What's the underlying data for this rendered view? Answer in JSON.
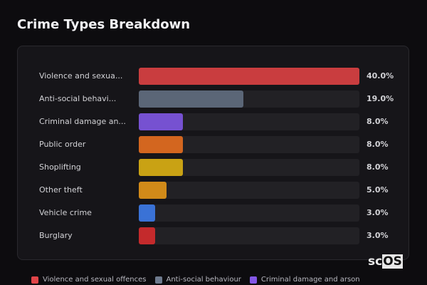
{
  "title": "Crime Types Breakdown",
  "logo": {
    "prefix": "sc",
    "suffix": "OS"
  },
  "chart_data": {
    "type": "bar",
    "orientation": "horizontal",
    "title": "Crime Types Breakdown",
    "categories": [
      "Violence and sexua...",
      "Anti-social behavi...",
      "Criminal damage an...",
      "Public order",
      "Shoplifting",
      "Other theft",
      "Vehicle crime",
      "Burglary"
    ],
    "values": [
      40.0,
      19.0,
      8.0,
      8.0,
      8.0,
      5.0,
      3.0,
      3.0
    ],
    "value_labels": [
      "40.0%",
      "19.0%",
      "8.0%",
      "8.0%",
      "8.0%",
      "5.0%",
      "3.0%",
      "3.0%"
    ],
    "colors": [
      "#c93d3f",
      "#5b6677",
      "#7651d1",
      "#d3661f",
      "#c9a214",
      "#d18a19",
      "#3a72d6",
      "#c42a2c"
    ],
    "xlim": [
      0,
      40
    ],
    "grid": false,
    "legend_position": "bottom",
    "legend": [
      {
        "label": "Violence and sexual offences",
        "color": "#e04448"
      },
      {
        "label": "Anti-social behaviour",
        "color": "#6e7a8e"
      },
      {
        "label": "Criminal damage and arson",
        "color": "#8357e6"
      }
    ]
  }
}
